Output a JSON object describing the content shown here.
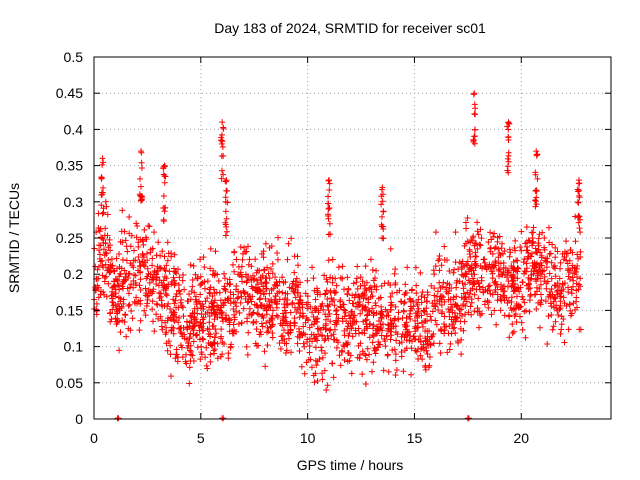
{
  "chart_data": {
    "type": "scatter",
    "title": "Day 183 of 2024, SRMTID for receiver sc01",
    "xlabel": "GPS time / hours",
    "ylabel": "SRMTID / TECUs",
    "xlim": [
      0,
      24.2
    ],
    "ylim": [
      0,
      0.5
    ],
    "xticks": [
      0,
      5,
      10,
      15,
      20
    ],
    "xtick_labels": [
      "0",
      "5",
      "10",
      "15",
      "20"
    ],
    "yticks": [
      0,
      0.05,
      0.1,
      0.15,
      0.2,
      0.25,
      0.3,
      0.35,
      0.4,
      0.45,
      0.5
    ],
    "ytick_labels": [
      "0",
      "0.05",
      "0.1",
      "0.15",
      "0.2",
      "0.25",
      "0.3",
      "0.35",
      "0.4",
      "0.45",
      "0.5"
    ],
    "grid": true,
    "marker": "+",
    "color": "#ff0000",
    "series": [
      {
        "name": "SRMTID",
        "description": "dense cloud of '+' markers, roughly 0.05–0.45 TECU over 0–22.8 h",
        "profile_hours": [
          0,
          0.5,
          1,
          1.5,
          2,
          2.5,
          3,
          3.5,
          4,
          4.5,
          5,
          5.5,
          6,
          6.5,
          7,
          7.5,
          8,
          8.5,
          9,
          9.5,
          10,
          10.5,
          11,
          11.5,
          12,
          12.5,
          13,
          13.5,
          14,
          14.5,
          15,
          15.5,
          16,
          16.5,
          17,
          17.5,
          18,
          18.5,
          19,
          19.5,
          20,
          20.5,
          21,
          21.5,
          22,
          22.5,
          22.8
        ],
        "profile_median": [
          0.2,
          0.23,
          0.16,
          0.2,
          0.21,
          0.2,
          0.19,
          0.16,
          0.14,
          0.13,
          0.15,
          0.15,
          0.14,
          0.16,
          0.18,
          0.17,
          0.16,
          0.17,
          0.15,
          0.15,
          0.13,
          0.13,
          0.14,
          0.14,
          0.14,
          0.15,
          0.15,
          0.14,
          0.13,
          0.13,
          0.14,
          0.12,
          0.16,
          0.16,
          0.15,
          0.2,
          0.2,
          0.2,
          0.2,
          0.18,
          0.18,
          0.22,
          0.2,
          0.18,
          0.17,
          0.2,
          0.21
        ],
        "spikes": [
          {
            "x": 0.4,
            "y": 0.36
          },
          {
            "x": 2.2,
            "y": 0.37
          },
          {
            "x": 3.3,
            "y": 0.35
          },
          {
            "x": 6.0,
            "y": 0.41
          },
          {
            "x": 6.2,
            "y": 0.33
          },
          {
            "x": 11.0,
            "y": 0.33
          },
          {
            "x": 13.5,
            "y": 0.32
          },
          {
            "x": 17.8,
            "y": 0.45
          },
          {
            "x": 19.4,
            "y": 0.41
          },
          {
            "x": 20.7,
            "y": 0.37
          },
          {
            "x": 22.7,
            "y": 0.33
          }
        ],
        "zero_points": [
          {
            "x": 1.1,
            "y": 0
          },
          {
            "x": 6.0,
            "y": 0
          },
          {
            "x": 17.5,
            "y": 0
          }
        ]
      }
    ]
  }
}
